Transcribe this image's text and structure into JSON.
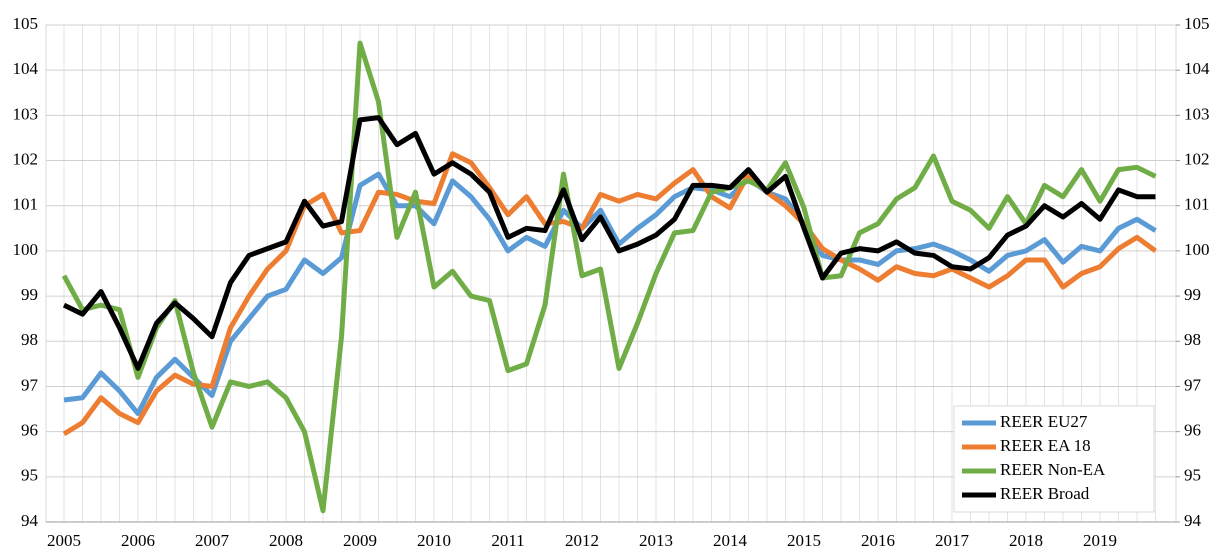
{
  "chart_data": {
    "type": "line",
    "categories": [
      "2005",
      null,
      null,
      null,
      "2006",
      null,
      null,
      null,
      "2007",
      null,
      null,
      null,
      "2008",
      null,
      null,
      null,
      "2009",
      null,
      null,
      null,
      "2010",
      null,
      null,
      null,
      "2011",
      null,
      null,
      null,
      "2012",
      null,
      null,
      null,
      "2013",
      null,
      null,
      null,
      "2014",
      null,
      null,
      null,
      "2015",
      null,
      null,
      null,
      "2016",
      null,
      null,
      null,
      "2017",
      null,
      null,
      null,
      "2018",
      null,
      null,
      null,
      "2019",
      null,
      null,
      null
    ],
    "series": [
      {
        "name": "REER EU27",
        "color": "#5b9bd5",
        "values": [
          96.7,
          96.75,
          97.3,
          96.9,
          96.4,
          97.2,
          97.6,
          97.2,
          96.8,
          98.0,
          98.5,
          99.0,
          99.15,
          99.8,
          99.5,
          99.85,
          101.45,
          101.7,
          101.0,
          101.0,
          100.6,
          101.55,
          101.2,
          100.7,
          100.0,
          100.3,
          100.1,
          100.9,
          100.5,
          100.9,
          100.15,
          100.5,
          100.8,
          101.2,
          101.4,
          101.35,
          101.2,
          101.6,
          101.3,
          101.15,
          100.6,
          99.9,
          99.8,
          99.8,
          99.7,
          100.0,
          100.05,
          100.15,
          100.0,
          99.8,
          99.55,
          99.9,
          100.0,
          100.25,
          99.75,
          100.1,
          100.0,
          100.5,
          100.7,
          100.45
        ]
      },
      {
        "name": "REER EA 18",
        "color": "#ed7d31",
        "values": [
          95.95,
          96.2,
          96.75,
          96.4,
          96.2,
          96.9,
          97.25,
          97.05,
          97.0,
          98.3,
          99.0,
          99.6,
          100.0,
          101.0,
          101.25,
          100.4,
          100.45,
          101.3,
          101.25,
          101.1,
          101.05,
          102.15,
          101.95,
          101.4,
          100.8,
          101.2,
          100.6,
          100.65,
          100.5,
          101.25,
          101.1,
          101.25,
          101.15,
          101.5,
          101.8,
          101.2,
          100.95,
          101.7,
          101.3,
          101.0,
          100.6,
          100.05,
          99.8,
          99.6,
          99.35,
          99.65,
          99.5,
          99.45,
          99.6,
          99.4,
          99.2,
          99.45,
          99.8,
          99.8,
          99.2,
          99.5,
          99.65,
          100.05,
          100.3,
          100.0
        ]
      },
      {
        "name": "REER Non-EA",
        "color": "#70ad47",
        "values": [
          99.45,
          98.7,
          98.8,
          98.7,
          97.2,
          98.3,
          98.9,
          97.3,
          96.1,
          97.1,
          97.0,
          97.1,
          96.75,
          96.0,
          94.25,
          98.1,
          104.6,
          103.3,
          100.3,
          101.3,
          99.2,
          99.55,
          99.0,
          98.9,
          97.35,
          97.5,
          98.8,
          101.7,
          99.45,
          99.6,
          97.4,
          98.4,
          99.5,
          100.4,
          100.45,
          101.3,
          101.4,
          101.55,
          101.35,
          101.95,
          100.95,
          99.4,
          99.45,
          100.4,
          100.6,
          101.15,
          101.4,
          102.1,
          101.1,
          100.9,
          100.5,
          101.2,
          100.6,
          101.45,
          101.2,
          101.8,
          101.1,
          101.8,
          101.85,
          101.65
        ]
      },
      {
        "name": "REER Broad",
        "color": "#000000",
        "values": [
          98.8,
          98.6,
          99.1,
          98.3,
          97.4,
          98.4,
          98.85,
          98.5,
          98.1,
          99.3,
          99.9,
          100.05,
          100.2,
          101.1,
          100.55,
          100.65,
          102.9,
          102.95,
          102.35,
          102.6,
          101.7,
          101.95,
          101.7,
          101.3,
          100.3,
          100.5,
          100.45,
          101.35,
          100.25,
          100.75,
          100.0,
          100.15,
          100.35,
          100.7,
          101.45,
          101.45,
          101.4,
          101.8,
          101.3,
          101.65,
          100.5,
          99.4,
          99.95,
          100.05,
          100.0,
          100.2,
          99.95,
          99.9,
          99.65,
          99.6,
          99.85,
          100.35,
          100.55,
          101.0,
          100.75,
          101.05,
          100.7,
          101.35,
          101.2,
          101.2
        ]
      }
    ],
    "ylim": [
      94,
      105
    ],
    "yticks": [
      94,
      95,
      96,
      97,
      98,
      99,
      100,
      101,
      102,
      103,
      104,
      105
    ],
    "y2lim": [
      94,
      105
    ],
    "y2ticks": [
      94,
      95,
      96,
      97,
      98,
      99,
      100,
      101,
      102,
      103,
      104,
      105
    ],
    "grid": true,
    "legend": "lower right"
  }
}
